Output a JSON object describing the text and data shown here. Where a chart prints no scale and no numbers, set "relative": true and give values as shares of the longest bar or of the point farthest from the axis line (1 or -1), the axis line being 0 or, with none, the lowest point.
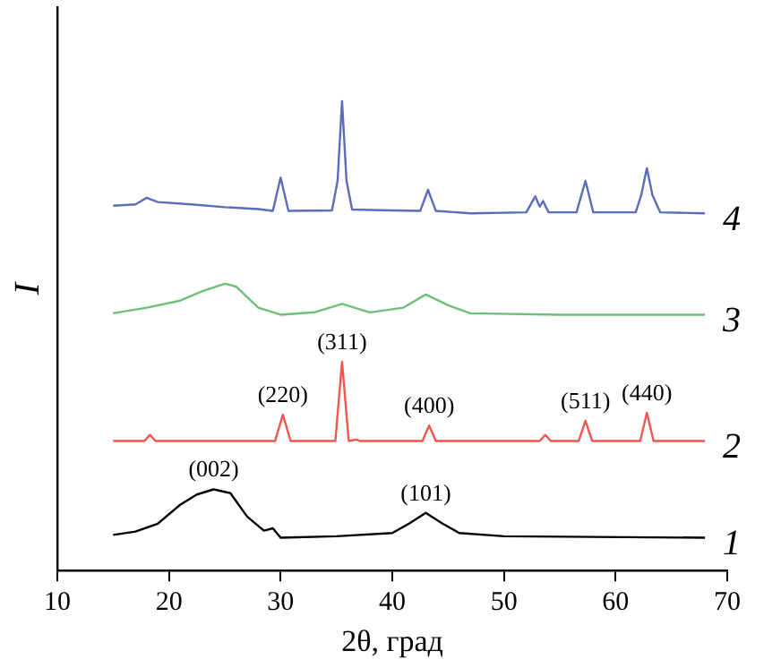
{
  "chart_data": {
    "type": "line",
    "relative": true,
    "xlabel": "2θ, град",
    "ylabel": "I",
    "xlim": [
      10,
      70
    ],
    "xticks": [
      10,
      20,
      30,
      40,
      50,
      60,
      70
    ],
    "grid": false,
    "legend": false,
    "marker": "none",
    "line_style": "solid",
    "series": [
      {
        "name": "1",
        "color": "#000000",
        "x": [
          15,
          17,
          19,
          21,
          22.5,
          24,
          25.5,
          27,
          28.5,
          29.3,
          30,
          35,
          40,
          41.5,
          43,
          44.5,
          46,
          50,
          68
        ],
        "values": [
          0.076,
          0.083,
          0.1,
          0.14,
          0.162,
          0.173,
          0.165,
          0.115,
          0.085,
          0.09,
          0.07,
          0.073,
          0.08,
          0.1,
          0.123,
          0.1,
          0.08,
          0.073,
          0.07
        ]
      },
      {
        "name": "2",
        "color": "#f0564e",
        "x": [
          15,
          17.8,
          18.3,
          18.8,
          29.5,
          30.2,
          30.9,
          34.9,
          35.5,
          36.1,
          36.8,
          37.1,
          42.7,
          43.3,
          43.9,
          53.2,
          53.7,
          54.2,
          56.7,
          57.3,
          57.9,
          62.2,
          62.8,
          63.4,
          68
        ],
        "values": [
          0.276,
          0.276,
          0.289,
          0.276,
          0.276,
          0.332,
          0.276,
          0.276,
          0.445,
          0.276,
          0.279,
          0.276,
          0.276,
          0.309,
          0.276,
          0.276,
          0.289,
          0.276,
          0.276,
          0.319,
          0.276,
          0.276,
          0.336,
          0.276,
          0.276
        ]
      },
      {
        "name": "3",
        "color": "#6cc07a",
        "x": [
          15,
          18,
          21,
          23,
          25,
          26,
          28,
          30,
          33,
          35.5,
          38,
          41,
          43,
          45,
          47,
          55,
          68
        ],
        "values": [
          0.548,
          0.56,
          0.575,
          0.595,
          0.611,
          0.605,
          0.56,
          0.545,
          0.55,
          0.568,
          0.55,
          0.56,
          0.588,
          0.565,
          0.548,
          0.545,
          0.545
        ]
      },
      {
        "name": "4",
        "color": "#5b6cb8",
        "x": [
          15,
          17,
          18,
          19,
          22,
          25,
          28,
          29.3,
          30,
          30.7,
          34.6,
          35.1,
          35.5,
          35.9,
          36.4,
          40,
          42.5,
          43.2,
          43.9,
          47,
          52,
          52.8,
          53.2,
          53.5,
          54,
          56.5,
          57.3,
          58,
          61.8,
          62.3,
          62.8,
          63.3,
          64,
          68
        ],
        "values": [
          0.777,
          0.78,
          0.794,
          0.785,
          0.78,
          0.774,
          0.77,
          0.766,
          0.837,
          0.766,
          0.767,
          0.83,
          1.0,
          0.83,
          0.769,
          0.767,
          0.766,
          0.811,
          0.766,
          0.761,
          0.763,
          0.797,
          0.775,
          0.787,
          0.763,
          0.763,
          0.83,
          0.763,
          0.763,
          0.8,
          0.857,
          0.8,
          0.763,
          0.761
        ]
      }
    ],
    "annotations": [
      {
        "text": "(002)",
        "x": 24,
        "y": 0.173
      },
      {
        "text": "(101)",
        "x": 43,
        "y": 0.123
      },
      {
        "text": "(220)",
        "x": 30.2,
        "y": 0.332
      },
      {
        "text": "(311)",
        "x": 35.5,
        "y": 0.445
      },
      {
        "text": "(400)",
        "x": 43.3,
        "y": 0.309
      },
      {
        "text": "(511)",
        "x": 57.3,
        "y": 0.319
      },
      {
        "text": "(440)",
        "x": 62.8,
        "y": 0.336
      }
    ]
  }
}
